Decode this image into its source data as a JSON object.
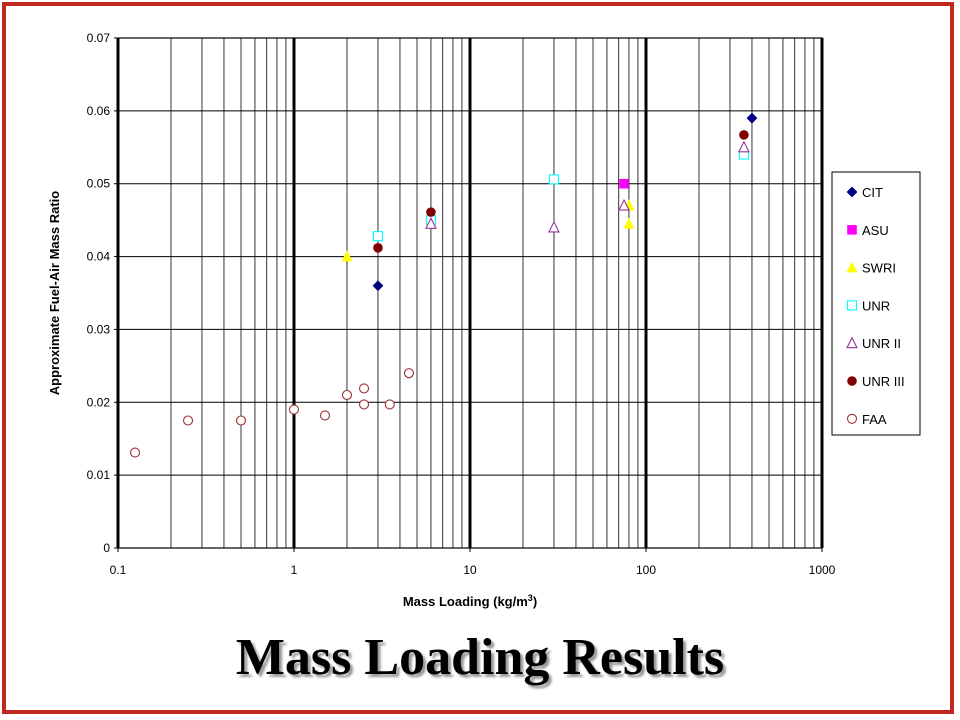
{
  "slide": {
    "title": "Mass Loading Results"
  },
  "chart_data": {
    "type": "scatter",
    "title": "",
    "xlabel": "Mass Loading (kg/m",
    "xlabel_sup": "3",
    "xlabel_close": ")",
    "ylabel": "Approximate Fuel-Air Mass Ratio",
    "xscale": "log",
    "xlim": [
      0.1,
      1000
    ],
    "ylim": [
      0,
      0.07
    ],
    "xticks": [
      0.1,
      1,
      10,
      100,
      1000
    ],
    "xtick_labels": [
      "0.1",
      "1",
      "10",
      "100",
      "1000"
    ],
    "yticks": [
      0,
      0.01,
      0.02,
      0.03,
      0.04,
      0.05,
      0.06,
      0.07
    ],
    "ytick_labels": [
      "0",
      "0.01",
      "0.02",
      "0.03",
      "0.04",
      "0.05",
      "0.06",
      "0.07"
    ],
    "grid": true,
    "legend_position": "right",
    "series": [
      {
        "name": "CIT",
        "marker": "diamond",
        "color": "#000080",
        "filled": true,
        "points": [
          [
            3,
            0.036
          ],
          [
            400,
            0.059
          ]
        ]
      },
      {
        "name": "ASU",
        "marker": "square",
        "color": "#ff00ff",
        "filled": true,
        "points": [
          [
            75,
            0.05
          ]
        ]
      },
      {
        "name": "SWRI",
        "marker": "triangle",
        "color": "#ffff00",
        "filled": true,
        "points": [
          [
            2,
            0.04
          ],
          [
            80,
            0.047
          ],
          [
            80,
            0.0445
          ]
        ]
      },
      {
        "name": "UNR",
        "marker": "square",
        "color": "#00ffff",
        "filled": false,
        "points": [
          [
            3,
            0.0428
          ],
          [
            6,
            0.045
          ],
          [
            30,
            0.0506
          ],
          [
            360,
            0.054
          ]
        ]
      },
      {
        "name": "UNR II",
        "marker": "triangle",
        "color": "#993399",
        "filled": false,
        "points": [
          [
            6,
            0.0445
          ],
          [
            30,
            0.044
          ],
          [
            75,
            0.047
          ],
          [
            360,
            0.055
          ]
        ]
      },
      {
        "name": "UNR III",
        "marker": "circle",
        "color": "#800000",
        "filled": true,
        "points": [
          [
            3,
            0.0412
          ],
          [
            6,
            0.0461
          ],
          [
            360,
            0.0567
          ]
        ]
      },
      {
        "name": "FAA",
        "marker": "circle",
        "color": "#993333",
        "filled": false,
        "points": [
          [
            0.125,
            0.0131
          ],
          [
            0.25,
            0.0175
          ],
          [
            0.5,
            0.0175
          ],
          [
            1,
            0.019
          ],
          [
            1.5,
            0.0182
          ],
          [
            2,
            0.021
          ],
          [
            2.5,
            0.0197
          ],
          [
            2.5,
            0.0219
          ],
          [
            3.5,
            0.0197
          ],
          [
            4.5,
            0.024
          ]
        ]
      }
    ]
  }
}
